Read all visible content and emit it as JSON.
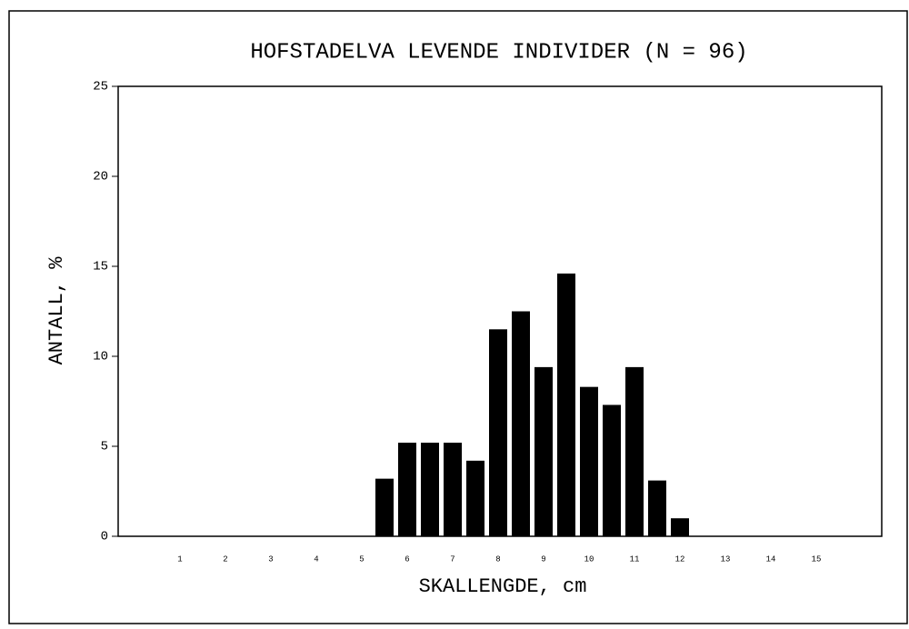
{
  "chart_data": {
    "type": "bar",
    "title": "HOFSTADELVA LEVENDE INDIVIDER (N = 96)",
    "x_label": "SKALLENGDE, cm",
    "y_label": "ANTALL, %",
    "x": [
      5.5,
      6,
      6.5,
      7,
      7.5,
      8,
      8.5,
      9,
      9.5,
      10,
      10.5,
      11,
      11.5,
      12
    ],
    "values": [
      3.2,
      5.2,
      5.2,
      5.2,
      4.2,
      11.5,
      12.5,
      9.4,
      14.6,
      8.3,
      7.3,
      9.4,
      3.1,
      1.0
    ],
    "color": "#000000",
    "xlim": [
      -0.36,
      16.44
    ],
    "xticks": [
      1,
      2,
      3,
      4,
      5,
      6,
      7,
      8,
      9,
      10,
      11,
      12,
      13,
      14,
      15
    ],
    "ylim": [
      0,
      25
    ],
    "yticks": [
      0,
      5,
      10,
      15,
      20,
      25
    ],
    "grid": false
  }
}
